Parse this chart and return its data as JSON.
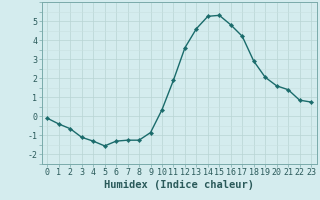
{
  "x": [
    0,
    1,
    2,
    3,
    4,
    5,
    6,
    7,
    8,
    9,
    10,
    11,
    12,
    13,
    14,
    15,
    16,
    17,
    18,
    19,
    20,
    21,
    22,
    23
  ],
  "y": [
    -0.1,
    -0.4,
    -0.65,
    -1.1,
    -1.3,
    -1.55,
    -1.3,
    -1.25,
    -1.25,
    -0.85,
    0.35,
    1.9,
    3.6,
    4.6,
    5.25,
    5.3,
    4.8,
    4.2,
    2.9,
    2.05,
    1.6,
    1.4,
    0.85,
    0.75
  ],
  "line_color": "#1a6b6b",
  "marker": "D",
  "marker_size": 2.2,
  "bg_color": "#d4ecee",
  "grid_major_color": "#b8d4d4",
  "grid_minor_color": "#c8e0e0",
  "xlabel": "Humidex (Indice chaleur)",
  "ylim": [
    -2.5,
    6.0
  ],
  "xlim": [
    -0.5,
    23.5
  ],
  "yticks": [
    -2,
    -1,
    0,
    1,
    2,
    3,
    4,
    5
  ],
  "xtick_labels": [
    "0",
    "1",
    "2",
    "3",
    "4",
    "5",
    "6",
    "7",
    "8",
    "9",
    "10",
    "11",
    "12",
    "13",
    "14",
    "15",
    "16",
    "17",
    "18",
    "19",
    "20",
    "21",
    "22",
    "23"
  ],
  "tick_color": "#2a5a5a",
  "label_fontsize": 7.5,
  "tick_fontsize": 6.0,
  "spine_color": "#7aaaaa",
  "linewidth": 1.0
}
